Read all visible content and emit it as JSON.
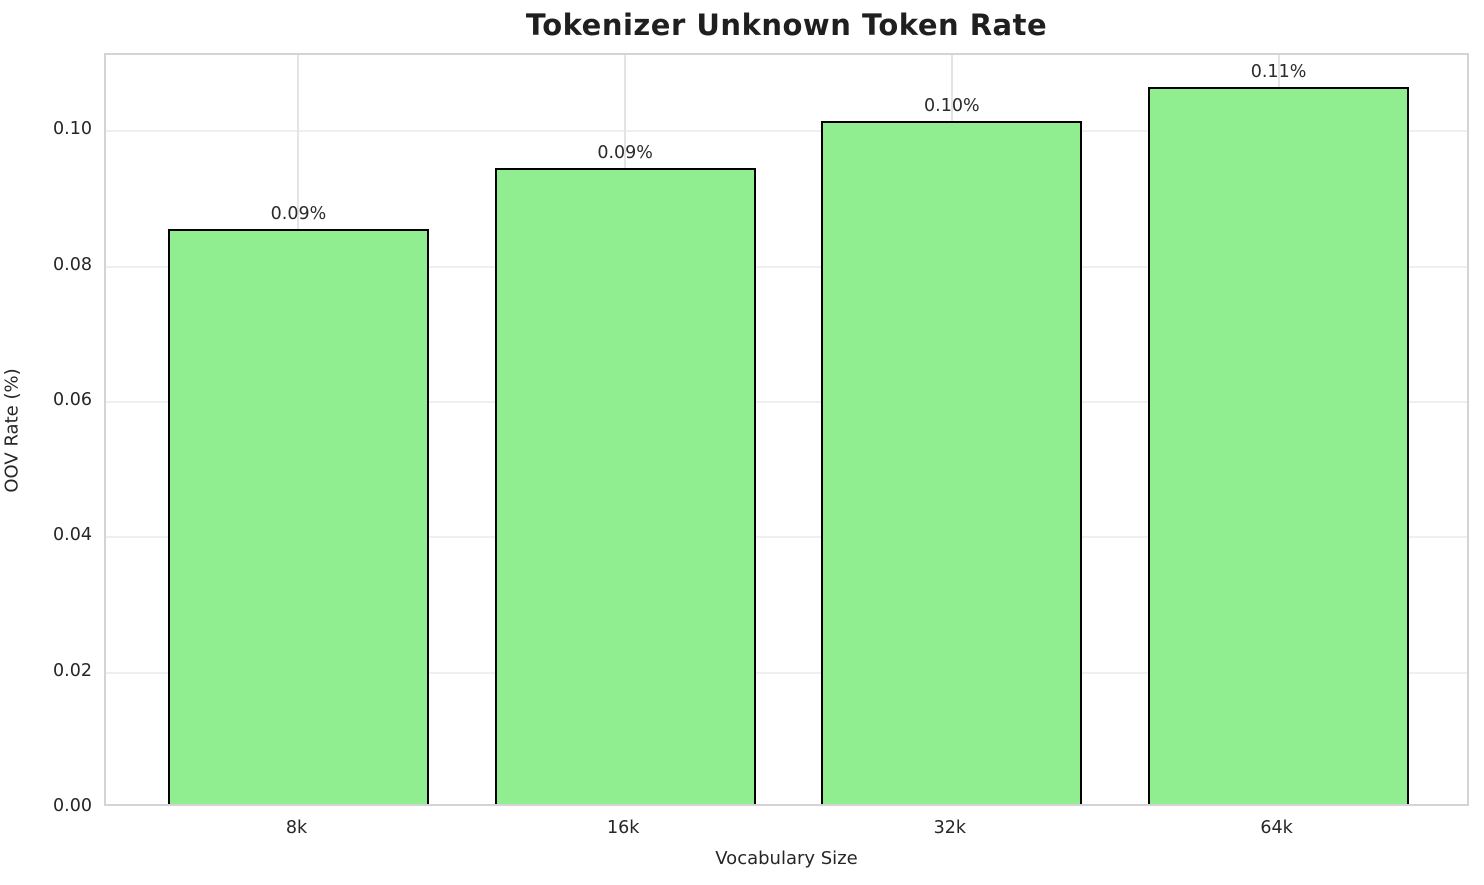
{
  "chart_data": {
    "type": "bar",
    "title": "Tokenizer Unknown Token Rate",
    "xlabel": "Vocabulary Size",
    "ylabel": "OOV Rate (%)",
    "categories": [
      "8k",
      "16k",
      "32k",
      "64k"
    ],
    "values": [
      0.085,
      0.094,
      0.101,
      0.106
    ],
    "bar_labels": [
      "0.09%",
      "0.09%",
      "0.10%",
      "0.11%"
    ],
    "yticks": [
      0.0,
      0.02,
      0.04,
      0.06,
      0.08,
      0.1
    ],
    "ytick_labels": [
      "0.00",
      "0.02",
      "0.04",
      "0.06",
      "0.08",
      "0.10"
    ],
    "ylim": [
      0,
      0.1113
    ],
    "grid": true,
    "legend_position": "none",
    "colors": {
      "bar_fill": "#90EE90",
      "bar_edge": "#000000",
      "grid_h": "#efefef",
      "grid_v": "#e4e4e4",
      "spine": "#d4d4d4",
      "text": "#262626",
      "background": "#ffffff"
    }
  }
}
